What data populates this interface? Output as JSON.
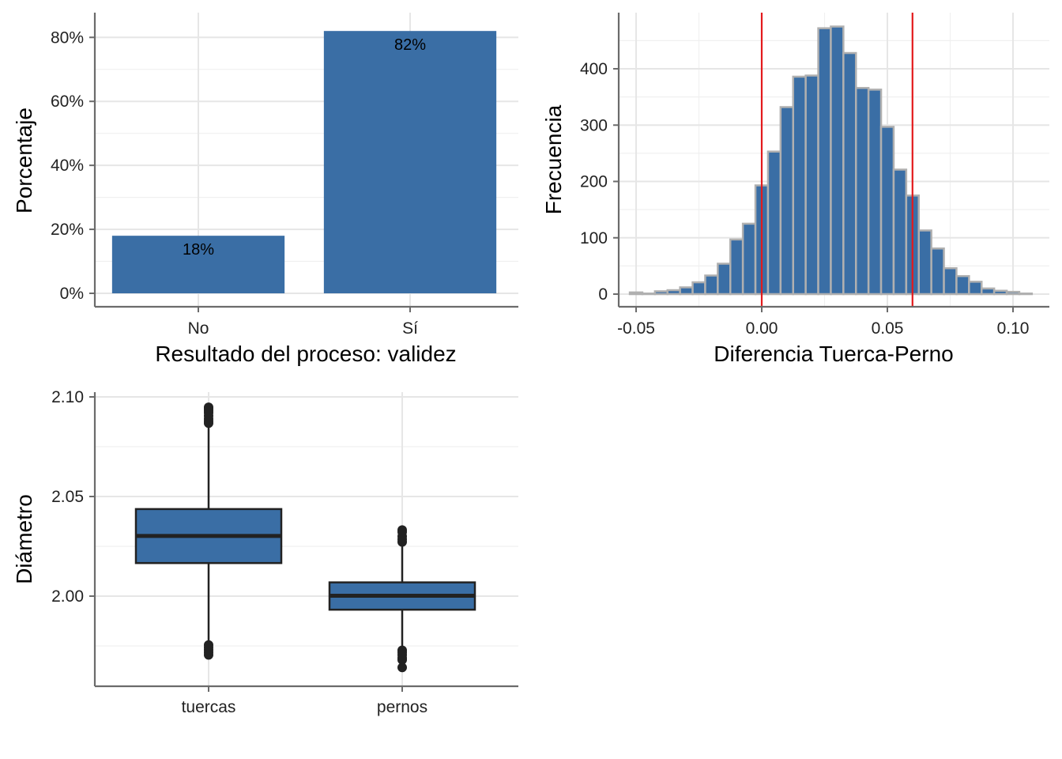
{
  "colors": {
    "bar": "#3a6ea5",
    "hist_outline": "#b0b0b0",
    "ref_line": "#e31a1c",
    "box_line": "#222222"
  },
  "chart_data": [
    {
      "type": "bar",
      "categories": [
        "No",
        "Sí"
      ],
      "values": [
        18,
        82
      ],
      "data_labels": [
        "18%",
        "82%"
      ],
      "xlabel": "Resultado del proceso: validez",
      "ylabel": "Porcentaje",
      "ylim": [
        0,
        86
      ],
      "yticks": [
        0,
        20,
        40,
        60,
        80
      ],
      "ytick_labels": [
        "0%",
        "20%",
        "40%",
        "60%",
        "80%"
      ]
    },
    {
      "type": "histogram",
      "xlabel": "Diferencia Tuerca-Perno",
      "ylabel": "Frecuencia",
      "bin_width": 0.005,
      "bin_centers": [
        -0.05,
        -0.045,
        -0.04,
        -0.035,
        -0.03,
        -0.025,
        -0.02,
        -0.015,
        -0.01,
        -0.005,
        0.0,
        0.005,
        0.01,
        0.015,
        0.02,
        0.025,
        0.03,
        0.035,
        0.04,
        0.045,
        0.05,
        0.055,
        0.06,
        0.065,
        0.07,
        0.075,
        0.08,
        0.085,
        0.09,
        0.095,
        0.1,
        0.105
      ],
      "counts": [
        3,
        1,
        5,
        7,
        12,
        21,
        33,
        54,
        97,
        125,
        193,
        253,
        332,
        386,
        388,
        472,
        475,
        428,
        366,
        363,
        297,
        221,
        175,
        113,
        81,
        46,
        32,
        22,
        10,
        6,
        4,
        1
      ],
      "vlines": [
        0.0,
        0.06
      ],
      "xlim": [
        -0.056,
        0.113
      ],
      "ylim": [
        -22,
        500
      ],
      "xticks": [
        -0.05,
        0.0,
        0.05,
        0.1
      ],
      "xtick_labels": [
        "-0.05",
        "0.00",
        "0.05",
        "0.10"
      ],
      "yticks": [
        0,
        100,
        200,
        300,
        400
      ],
      "ytick_labels": [
        "0",
        "100",
        "200",
        "300",
        "400"
      ]
    },
    {
      "type": "boxplot",
      "ylabel": "Diámetro",
      "ylim": [
        1.954,
        2.102
      ],
      "yticks": [
        2.0,
        2.05,
        2.1
      ],
      "ytick_labels": [
        "2.00",
        "2.05",
        "2.10"
      ],
      "categories": [
        "tuercas",
        "pernos"
      ],
      "boxes": [
        {
          "name": "tuercas",
          "q1": 2.0166,
          "median": 2.0302,
          "q3": 2.0437,
          "whisker_low": 1.9762,
          "whisker_high": 2.0862,
          "outliers": [
            2.0948,
            2.094,
            2.093,
            2.092,
            2.0905,
            2.089,
            2.0878,
            2.0868,
            1.9755,
            1.9742,
            1.973,
            1.9718,
            1.9705
          ]
        },
        {
          "name": "pernos",
          "q1": 1.9932,
          "median": 2.0002,
          "q3": 2.0069,
          "whisker_low": 1.9727,
          "whisker_high": 2.0272,
          "outliers": [
            2.0332,
            2.0322,
            2.03,
            2.0285,
            2.0272,
            1.9728,
            1.9718,
            1.9705,
            1.969,
            1.968,
            1.9642
          ]
        }
      ]
    }
  ]
}
